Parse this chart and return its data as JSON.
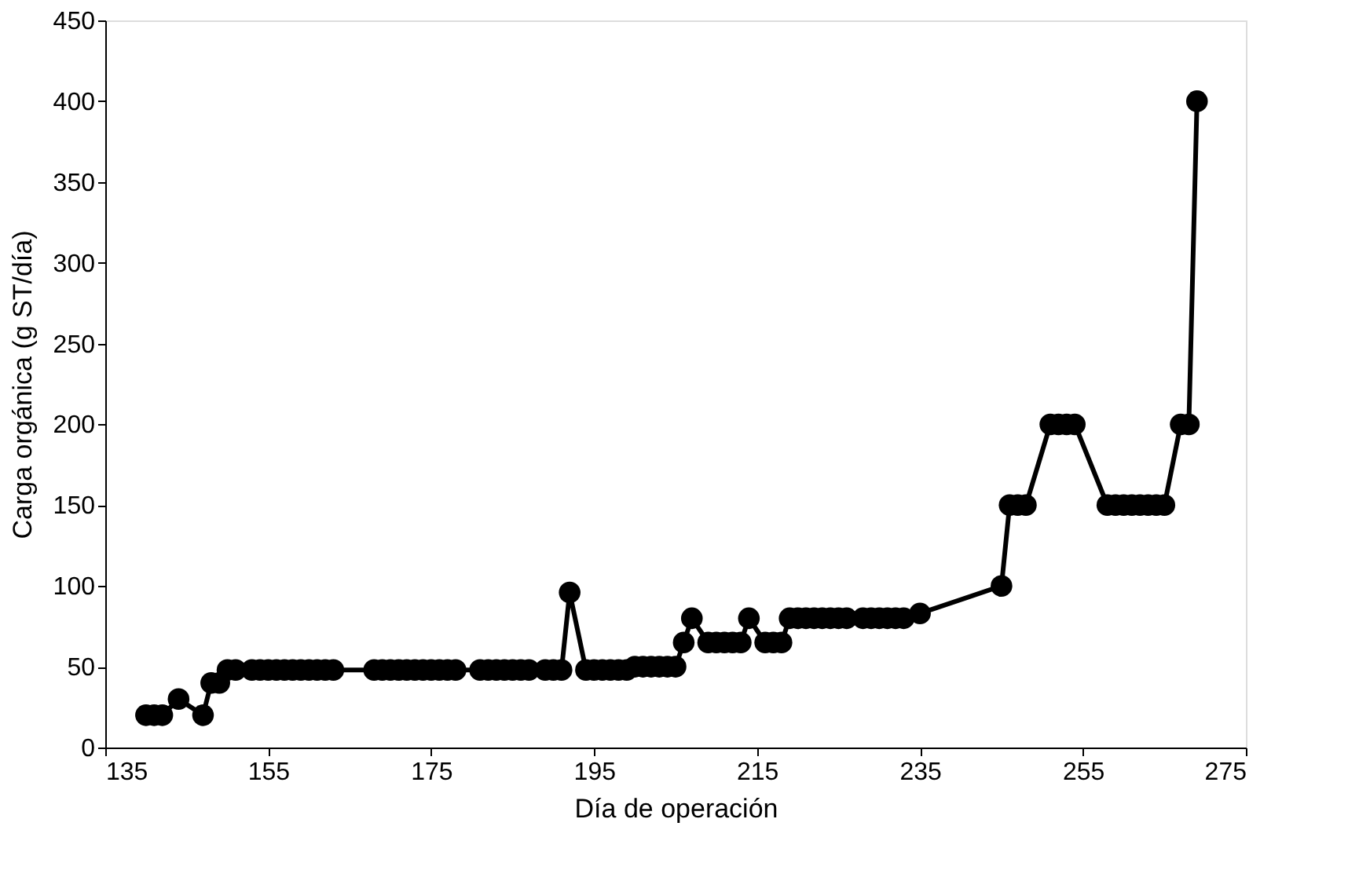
{
  "chart_data": {
    "type": "line",
    "xlabel": "Día de operación",
    "ylabel": "Carga orgánica (g ST/día)",
    "x": [
      140,
      141,
      142,
      144,
      147,
      148,
      149,
      150,
      151,
      153,
      154,
      155,
      156,
      157,
      158,
      159,
      160,
      161,
      162,
      163,
      168,
      169,
      170,
      171,
      172,
      173,
      174,
      175,
      176,
      177,
      178,
      181,
      182,
      183,
      184,
      185,
      186,
      187,
      189,
      190,
      191,
      192,
      194,
      195,
      196,
      197,
      198,
      199,
      200,
      201,
      202,
      203,
      204,
      205,
      206,
      207,
      209,
      210,
      211,
      212,
      213,
      214,
      216,
      217,
      218,
      219,
      220,
      221,
      222,
      223,
      224,
      225,
      226,
      228,
      229,
      230,
      231,
      232,
      233,
      235,
      245,
      246,
      247,
      248,
      251,
      252,
      253,
      254,
      258,
      259,
      260,
      261,
      262,
      263,
      264,
      265,
      267,
      268,
      269
    ],
    "series": [
      {
        "color": "#000000",
        "values": [
          20,
          20,
          20,
          30,
          20,
          40,
          40,
          48,
          48,
          48,
          48,
          48,
          48,
          48,
          48,
          48,
          48,
          48,
          48,
          48,
          48,
          48,
          48,
          48,
          48,
          48,
          48,
          48,
          48,
          48,
          48,
          48,
          48,
          48,
          48,
          48,
          48,
          48,
          48,
          48,
          48,
          96,
          48,
          48,
          48,
          48,
          48,
          48,
          50,
          50,
          50,
          50,
          50,
          50,
          65,
          80,
          65,
          65,
          65,
          65,
          65,
          80,
          65,
          65,
          65,
          80,
          80,
          80,
          80,
          80,
          80,
          80,
          80,
          80,
          80,
          80,
          80,
          80,
          80,
          83,
          100,
          150,
          150,
          150,
          200,
          200,
          200,
          200,
          150,
          150,
          150,
          150,
          150,
          150,
          150,
          150,
          200,
          200,
          400
        ]
      }
    ],
    "xlim": [
      135,
      275
    ],
    "xticks": [
      135,
      155,
      175,
      195,
      215,
      235,
      255,
      275
    ],
    "ylim": [
      0,
      450
    ],
    "yticks": [
      0,
      50,
      100,
      150,
      200,
      250,
      300,
      350,
      400,
      450
    ],
    "grid": false,
    "legend": false,
    "marker": "circle",
    "line_style": "solid"
  }
}
